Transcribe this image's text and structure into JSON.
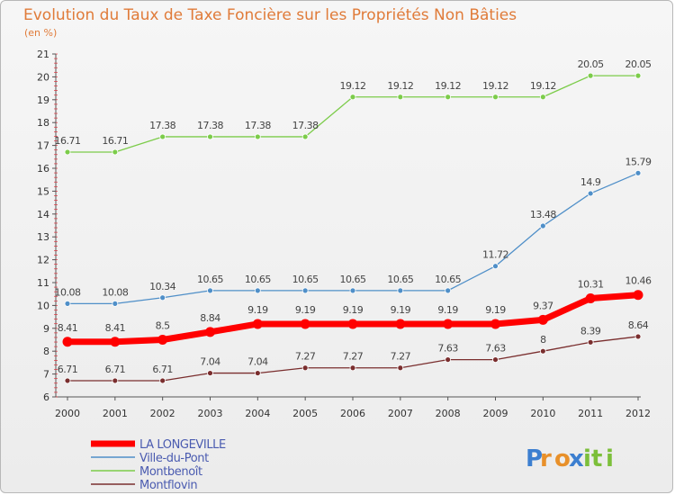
{
  "chart_data": {
    "type": "line",
    "title": "Evolution du Taux de Taxe Foncière sur les Propriétés Non Bâties",
    "subtitle": "(en %)",
    "x": [
      "2000",
      "2001",
      "2002",
      "2003",
      "2004",
      "2005",
      "2006",
      "2007",
      "2008",
      "2009",
      "2010",
      "2011",
      "2012"
    ],
    "yticks": [
      "6",
      "7",
      "8",
      "9",
      "10",
      "11",
      "12",
      "13",
      "14",
      "15",
      "16",
      "17",
      "18",
      "19",
      "20",
      "21"
    ],
    "ylim": [
      6,
      21
    ],
    "grid": false,
    "legend_position": "bottom-left",
    "series": [
      {
        "name": "LA LONGEVILLE",
        "color": "#ff0000",
        "values": [
          8.41,
          8.41,
          8.5,
          8.84,
          9.19,
          9.19,
          9.19,
          9.19,
          9.19,
          9.19,
          9.37,
          10.31,
          10.46
        ],
        "labels": [
          "8.41",
          "8.41",
          "8.5",
          "8.84",
          "9.19",
          "9.19",
          "9.19",
          "9.19",
          "9.19",
          "9.19",
          "9.37",
          "10.31",
          "10.46"
        ]
      },
      {
        "name": "Ville-du-Pont",
        "color": "#4f8fc8",
        "values": [
          10.08,
          10.08,
          10.34,
          10.65,
          10.65,
          10.65,
          10.65,
          10.65,
          10.65,
          11.72,
          13.48,
          14.9,
          15.79
        ],
        "labels": [
          "10.08",
          "10.08",
          "10.34",
          "10.65",
          "10.65",
          "10.65",
          "10.65",
          "10.65",
          "10.65",
          "11.72",
          "13.48",
          "14.9",
          "15.79"
        ]
      },
      {
        "name": "Montbenoît",
        "color": "#7ccc4a",
        "values": [
          16.71,
          16.71,
          17.38,
          17.38,
          17.38,
          17.38,
          19.12,
          19.12,
          19.12,
          19.12,
          19.12,
          20.05,
          20.05
        ],
        "labels": [
          "16.71",
          "16.71",
          "17.38",
          "17.38",
          "17.38",
          "17.38",
          "19.12",
          "19.12",
          "19.12",
          "19.12",
          "19.12",
          "20.05",
          "20.05"
        ]
      },
      {
        "name": "Montflovin",
        "color": "#7a2e2e",
        "values": [
          6.71,
          6.71,
          6.71,
          7.04,
          7.04,
          7.27,
          7.27,
          7.27,
          7.63,
          7.63,
          8,
          8.39,
          8.64
        ],
        "labels": [
          "6.71",
          "6.71",
          "6.71",
          "7.04",
          "7.04",
          "7.27",
          "7.27",
          "7.27",
          "7.63",
          "7.63",
          "8",
          "8.39",
          "8.64"
        ]
      }
    ]
  },
  "logo": {
    "text": "Proxiti"
  }
}
